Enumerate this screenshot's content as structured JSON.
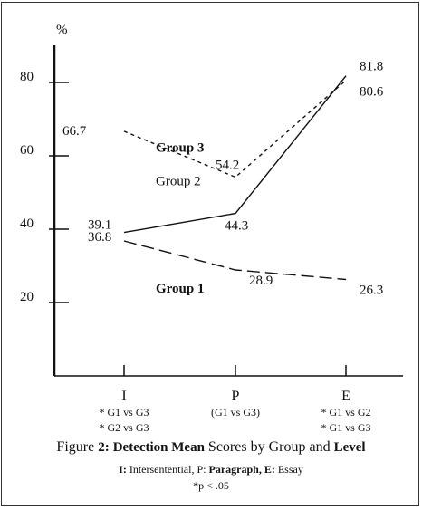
{
  "chart_data": {
    "type": "line",
    "ylabel": "%",
    "yticks": [
      20,
      40,
      60,
      80
    ],
    "ylim": [
      0,
      100
    ],
    "categories": [
      "I",
      "P",
      "E"
    ],
    "category_notes": [
      [
        "* G1 vs G3",
        "* G2 vs G3"
      ],
      [
        "(G1 vs G3)"
      ],
      [
        "* G1 vs G2",
        "* G1 vs G3"
      ]
    ],
    "series": [
      {
        "name": "Group 1",
        "values": [
          36.8,
          28.9,
          26.3
        ],
        "value_labels": [
          "36.8",
          "28.9",
          "26.3"
        ],
        "style": "long-dash"
      },
      {
        "name": "Group 2",
        "values": [
          39.1,
          44.3,
          81.8
        ],
        "value_labels": [
          "39.1",
          "44.3",
          "81.8"
        ],
        "style": "solid"
      },
      {
        "name": "Group 3",
        "values": [
          66.7,
          54.2,
          80.6
        ],
        "value_labels": [
          "66.7",
          "54.2",
          "80.6"
        ],
        "style": "short-dash"
      }
    ],
    "grid": false
  },
  "caption": {
    "prefix": "Figure",
    "number": "2:",
    "title_bold_1": "Detection Mean",
    "title_mid": "Scores by Group and",
    "title_end": "Level",
    "abbrev_i": "I:",
    "abbrev_i_text": "Intersentential, P:",
    "abbrev_p": "Paragraph, E:",
    "abbrev_e": "Essay",
    "significance": "*p < .05"
  }
}
